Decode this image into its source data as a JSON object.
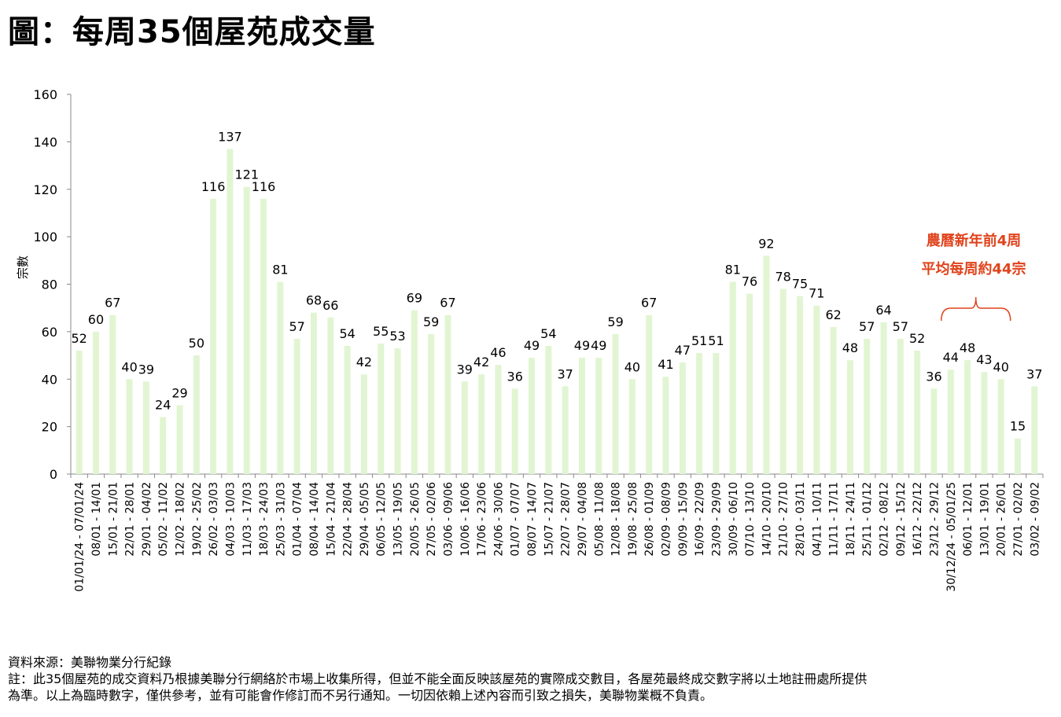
{
  "page": {
    "title": "圖：每周35個屋苑成交量"
  },
  "chart_data": {
    "type": "bar",
    "title": "",
    "xlabel": "",
    "ylabel": "宗數",
    "ylim": [
      0,
      160
    ],
    "yticks": [
      0,
      20,
      40,
      60,
      80,
      100,
      120,
      140,
      160
    ],
    "grid": false,
    "bar_color": "#e2f5d3",
    "categories": [
      "01/01/24 - 07/01/24",
      "08/01 - 14/01",
      "15/01 - 21/01",
      "22/01 - 28/01",
      "29/01 - 04/02",
      "05/02 - 11/02",
      "12/02 - 18/02",
      "19/02 - 25/02",
      "26/02 - 03/03",
      "04/03 - 10/03",
      "11/03 - 17/03",
      "18/03 - 24/03",
      "25/03 - 31/03",
      "01/04 - 07/04",
      "08/04 - 14/04",
      "15/04 - 21/04",
      "22/04 - 28/04",
      "29/04 - 05/05",
      "06/05 - 12/05",
      "13/05 - 19/05",
      "20/05 - 26/05",
      "27/05 - 02/06",
      "03/06 - 09/06",
      "10/06 - 16/06",
      "17/06 - 23/06",
      "24/06 - 30/06",
      "01/07 - 07/07",
      "08/07 - 14/07",
      "15/07 - 21/07",
      "22/07 - 28/07",
      "29/07 - 04/08",
      "05/08 - 11/08",
      "12/08 - 18/08",
      "19/08 - 25/08",
      "26/08 - 01/09",
      "02/09 - 08/09",
      "09/09 - 15/09",
      "16/09 - 22/09",
      "23/09 - 29/09",
      "30/09 - 06/10",
      "07/10 - 13/10",
      "14/10 - 20/10",
      "21/10 - 27/10",
      "28/10 - 03/11",
      "04/11 - 10/11",
      "11/11 - 17/11",
      "18/11 - 24/11",
      "25/11 - 01/12",
      "02/12 - 08/12",
      "09/12 - 15/12",
      "16/12 - 22/12",
      "23/12 - 29/12",
      "30/12/24 - 05/01/25",
      "06/01 - 12/01",
      "13/01 - 19/01",
      "20/01 - 26/01",
      "27/01 - 02/02",
      "03/02 - 09/02"
    ],
    "values": [
      52,
      60,
      67,
      40,
      39,
      24,
      29,
      50,
      116,
      137,
      121,
      116,
      81,
      57,
      68,
      66,
      54,
      42,
      55,
      53,
      69,
      59,
      67,
      39,
      42,
      46,
      36,
      49,
      54,
      37,
      49,
      49,
      59,
      40,
      67,
      41,
      47,
      51,
      51,
      81,
      76,
      92,
      78,
      75,
      71,
      62,
      48,
      57,
      64,
      57,
      52,
      36,
      44,
      48,
      43,
      40,
      15,
      37
    ],
    "annotation": {
      "lines": [
        "農曆新年前4周",
        "平均每周約44宗"
      ],
      "color": "#e0421b",
      "span_categories": [
        "30/12/24 - 05/01/25",
        "20/01 - 26/01"
      ]
    }
  },
  "footer": {
    "source": "資料來源：美聯物業分行紀錄",
    "note1": "註：此35個屋苑的成交資料乃根據美聯分行網絡於市場上收集所得，但並不能全面反映該屋苑的實際成交數目，各屋苑最終成交數字將以土地註冊處所提供",
    "note2": "為準。以上為臨時數字，僅供參考，並有可能會作修訂而不另行通知。一切因依賴上述內容而引致之損失，美聯物業概不負責。"
  }
}
